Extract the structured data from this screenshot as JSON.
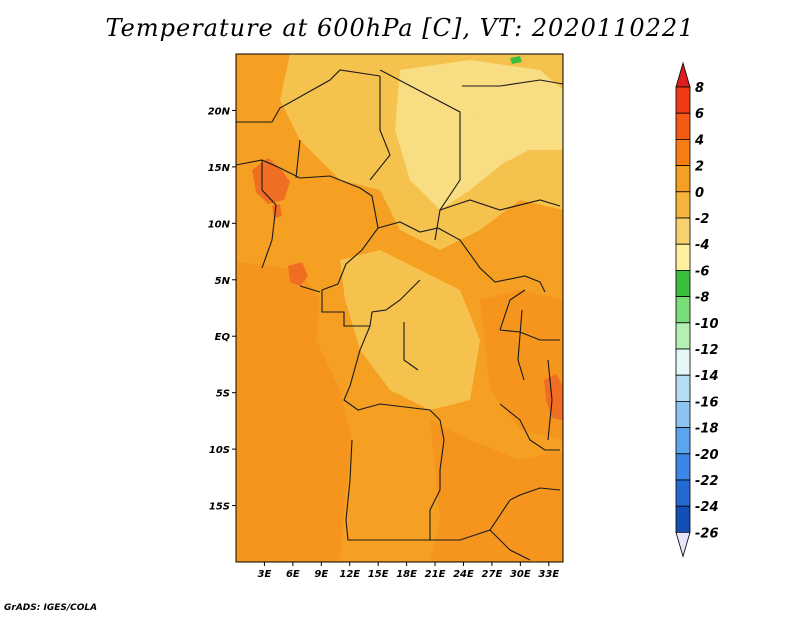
{
  "title": "Temperature at 600hPa [C], VT: 2020110221",
  "credit": "GrADS: IGES/COLA",
  "map": {
    "lon_range": [
      0,
      34.5
    ],
    "lat_range": [
      -20,
      25
    ],
    "x_ticks": [
      "3E",
      "6E",
      "9E",
      "12E",
      "15E",
      "18E",
      "21E",
      "24E",
      "27E",
      "30E",
      "33E"
    ],
    "y_ticks": [
      "20N",
      "15N",
      "10N",
      "5N",
      "EQ",
      "5S",
      "10S",
      "15S"
    ]
  },
  "colorbar": {
    "levels": [
      "8",
      "6",
      "4",
      "2",
      "0",
      "-2",
      "-4",
      "-6",
      "-8",
      "-10",
      "-12",
      "-14",
      "-16",
      "-18",
      "-20",
      "-22",
      "-24",
      "-26"
    ],
    "colors": [
      "#f03c14",
      "#f55a14",
      "#f57d14",
      "#f5a023",
      "#f5b43c",
      "#f5d26e",
      "#fff0a0",
      "#3cbe3c",
      "#78dc78",
      "#b4f0b4",
      "#e6f5f5",
      "#b4dcf5",
      "#8cc3f0",
      "#5aa5f0",
      "#3c87e6",
      "#2369d2",
      "#1450b4",
      "#0a3296",
      "#00146e"
    ],
    "top_arrow_color": "#dc1e1e",
    "bottom_arrow_color": "#e6e6fa"
  },
  "colors": {
    "field_base": "#f5a023",
    "warm_dark": "#f5951e",
    "warm_red": "#f06e23",
    "cool_light": "#f5c24e",
    "cool_pale": "#f9dd82",
    "green_patch": "#3cbe3c",
    "border": "#1a1a1a"
  }
}
